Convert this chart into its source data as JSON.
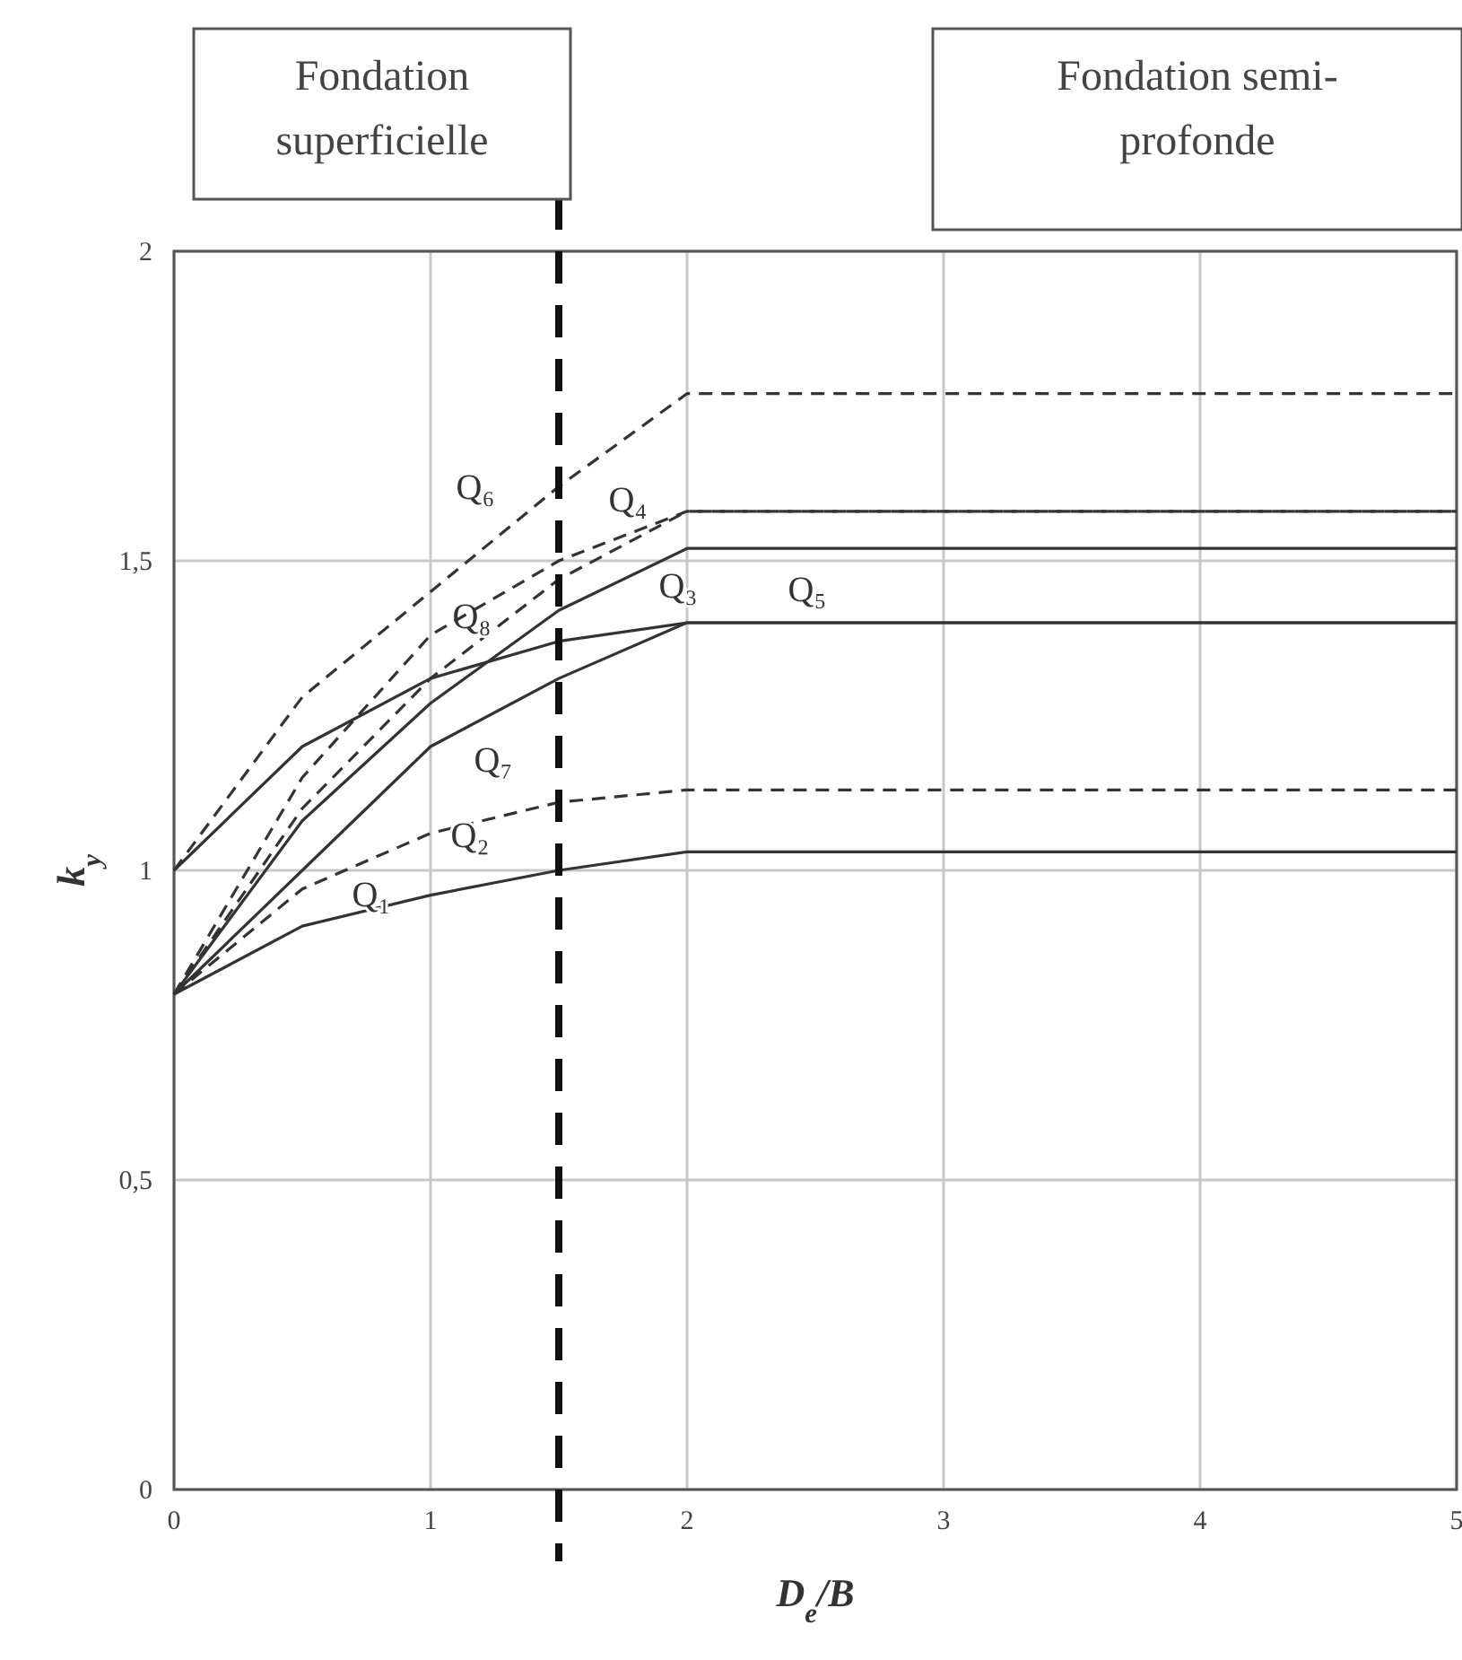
{
  "chart_data": {
    "type": "line",
    "xlabel": "D$_{e}$/B",
    "ylabel": "k$_{y}$",
    "xlim": [
      0,
      5
    ],
    "ylim": [
      0,
      2
    ],
    "xticks": [
      0,
      1,
      2,
      3,
      4,
      5
    ],
    "yticks": [
      0,
      {
        "value": 0.5,
        "label": "0,5"
      },
      1,
      {
        "value": 1.5,
        "label": "1,5"
      },
      2
    ],
    "grid": true,
    "marker": "none",
    "series": [
      {
        "name": "Q₁",
        "color": "#333333",
        "line_style": "solid",
        "x": [
          0,
          0.5,
          1,
          1.5,
          2,
          5
        ],
        "values": [
          0.8,
          0.91,
          0.96,
          1.0,
          1.03,
          1.03
        ]
      },
      {
        "name": "Q₂",
        "color": "#333333",
        "line_style": "dashed",
        "x": [
          0,
          0.5,
          1,
          1.5,
          2,
          5
        ],
        "values": [
          0.8,
          0.97,
          1.06,
          1.11,
          1.13,
          1.13
        ]
      },
      {
        "name": "Q₇",
        "color": "#333333",
        "line_style": "solid",
        "x": [
          0,
          0.5,
          1,
          1.5,
          2,
          5
        ],
        "values": [
          0.8,
          1.0,
          1.2,
          1.31,
          1.4,
          1.4
        ]
      },
      {
        "name": "Q₅",
        "color": "#333333",
        "line_style": "solid",
        "x": [
          0,
          0.5,
          1,
          1.5,
          2,
          5
        ],
        "values": [
          1.0,
          1.2,
          1.31,
          1.37,
          1.4,
          1.4
        ]
      },
      {
        "name": "Q₃",
        "color": "#333333",
        "line_style": "solid",
        "x": [
          0,
          0.5,
          1,
          1.5,
          2,
          5
        ],
        "values": [
          0.8,
          1.08,
          1.27,
          1.42,
          1.52,
          1.52
        ]
      },
      {
        "name": "Q₈",
        "color": "#333333",
        "line_style": "dashed",
        "x": [
          0,
          0.5,
          1,
          1.5,
          2,
          5
        ],
        "values": [
          0.8,
          1.1,
          1.31,
          1.47,
          1.58,
          1.58
        ]
      },
      {
        "name": "Q₄",
        "color": "#333333",
        "line_style": "dashed",
        "x": [
          0,
          0.5,
          1,
          1.5,
          2,
          5
        ],
        "values": [
          0.8,
          1.15,
          1.38,
          1.5,
          1.58,
          1.58
        ]
      },
      {
        "name": "Q₆",
        "color": "#333333",
        "line_style": "dashed",
        "x": [
          0,
          0.5,
          1,
          1.5,
          2,
          5
        ],
        "values": [
          1.0,
          1.28,
          1.45,
          1.62,
          1.77,
          1.77
        ]
      }
    ],
    "ref_lines": [
      {
        "axis": "x",
        "value": 1.5,
        "color": "#111111",
        "line_style": "dashed"
      }
    ],
    "annotations": [
      "Fondation\nsuperficielle",
      "Fondation semi-\nprofonde"
    ]
  }
}
